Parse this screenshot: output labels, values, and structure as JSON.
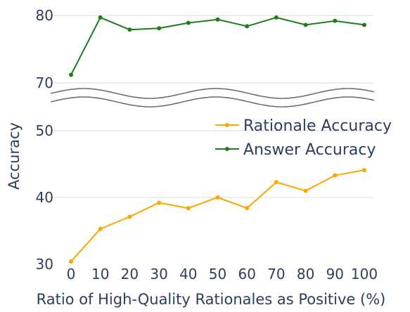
{
  "chart_data": {
    "type": "line",
    "xlabel": "Ratio of High-Quality Rationales as Positive (%)",
    "ylabel": "Accuracy",
    "x": [
      0,
      10,
      20,
      30,
      40,
      50,
      60,
      70,
      80,
      90,
      100
    ],
    "x_ticks": [
      "0",
      "10",
      "20",
      "30",
      "40",
      "50",
      "60",
      "70",
      "80",
      "90",
      "100"
    ],
    "y_ticks_lower": [
      "30",
      "40",
      "50"
    ],
    "y_ticks_upper": [
      "70",
      "80"
    ],
    "ylim_lower": [
      30,
      50
    ],
    "ylim_upper": [
      70,
      80
    ],
    "axis_break": true,
    "grid": true,
    "legend": "center-right",
    "series": [
      {
        "name": "Rationale Accuracy",
        "color": "#ffa500",
        "values": [
          30.4,
          35.3,
          37.1,
          39.2,
          38.4,
          40.0,
          38.4,
          42.3,
          41.0,
          43.3,
          44.1
        ]
      },
      {
        "name": "Answer Accuracy",
        "color": "#1a7f1a",
        "values": [
          71.2,
          79.7,
          77.9,
          78.1,
          78.9,
          79.4,
          78.4,
          79.7,
          78.6,
          79.2,
          78.6
        ]
      }
    ]
  }
}
